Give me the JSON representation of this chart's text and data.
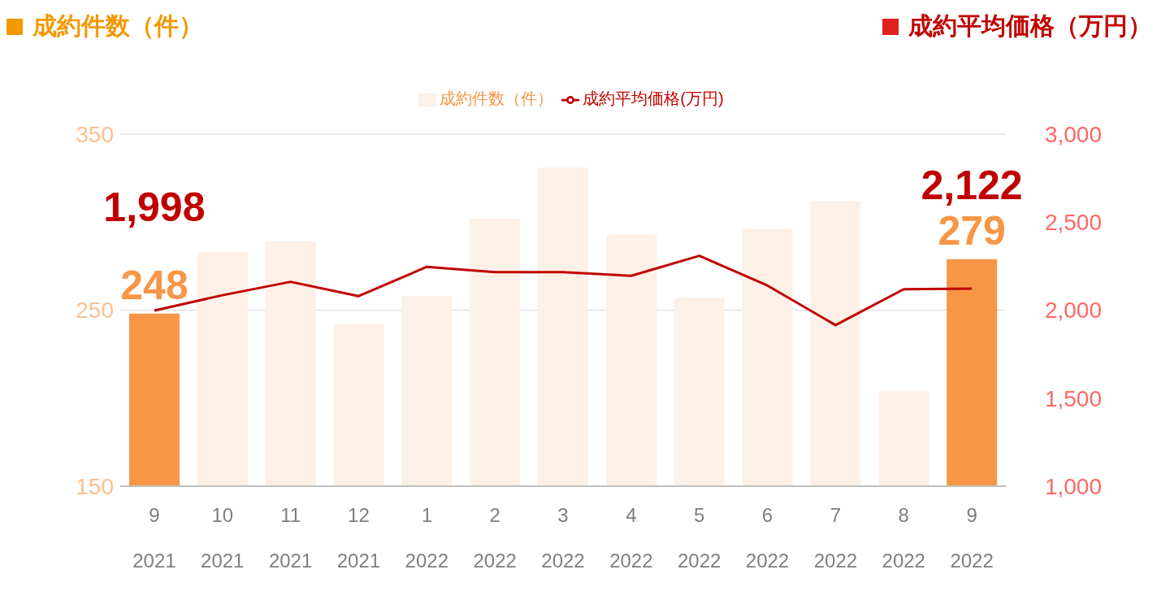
{
  "chart_data": {
    "type": "bar",
    "ylabel": "成約件数（件）",
    "y2label": "成約平均価格（万円）",
    "categories": [
      "9\n2021",
      "10\n2021",
      "11\n2021",
      "12\n2021",
      "1\n2022",
      "2\n2022",
      "3\n2022",
      "4\n2022",
      "5\n2022",
      "6\n2022",
      "7\n2022",
      "8\n2022",
      "9\n2022"
    ],
    "series": [
      {
        "name": "成約件数（件）",
        "color": "#fdf0e6",
        "colors": [
          "#f79646",
          "#fdf0e6",
          "#fdf0e6",
          "#fdf0e6",
          "#fdf0e6",
          "#fdf0e6",
          "#fdf0e6",
          "#fdf0e6",
          "#fdf0e6",
          "#fdf0e6",
          "#fdf0e6",
          "#fdf0e6",
          "#f79646"
        ],
        "values": [
          248,
          283,
          289,
          242,
          258,
          302,
          331,
          293,
          257,
          296,
          312,
          204,
          279
        ],
        "value_labels": [
          "248",
          null,
          null,
          null,
          null,
          null,
          null,
          null,
          null,
          null,
          null,
          null,
          "279"
        ]
      },
      {
        "name": "成約平均価格(万円)",
        "type": "line",
        "axis": "y2",
        "color": "#c00000",
        "values": [
          1998,
          2085,
          2161,
          2080,
          2246,
          2216,
          2216,
          2195,
          2309,
          2140,
          1915,
          2119,
          2122
        ],
        "value_labels": [
          "1,998",
          null,
          null,
          null,
          null,
          null,
          null,
          null,
          null,
          null,
          null,
          null,
          "2,122"
        ]
      }
    ],
    "ylim": [
      150,
      350
    ],
    "yticks": [
      150,
      250,
      350
    ],
    "y2lim": [
      1000,
      3000
    ],
    "y2ticks": [
      {
        "value": 1000,
        "label": "1,000"
      },
      {
        "value": 1500,
        "label": "1,500"
      },
      {
        "value": 2000,
        "label": "2,000"
      },
      {
        "value": 2500,
        "label": "2,500"
      },
      {
        "value": 3000,
        "label": "3,000"
      }
    ],
    "grid": "y",
    "legend": "top",
    "marker": "none",
    "line_style": "solid"
  }
}
